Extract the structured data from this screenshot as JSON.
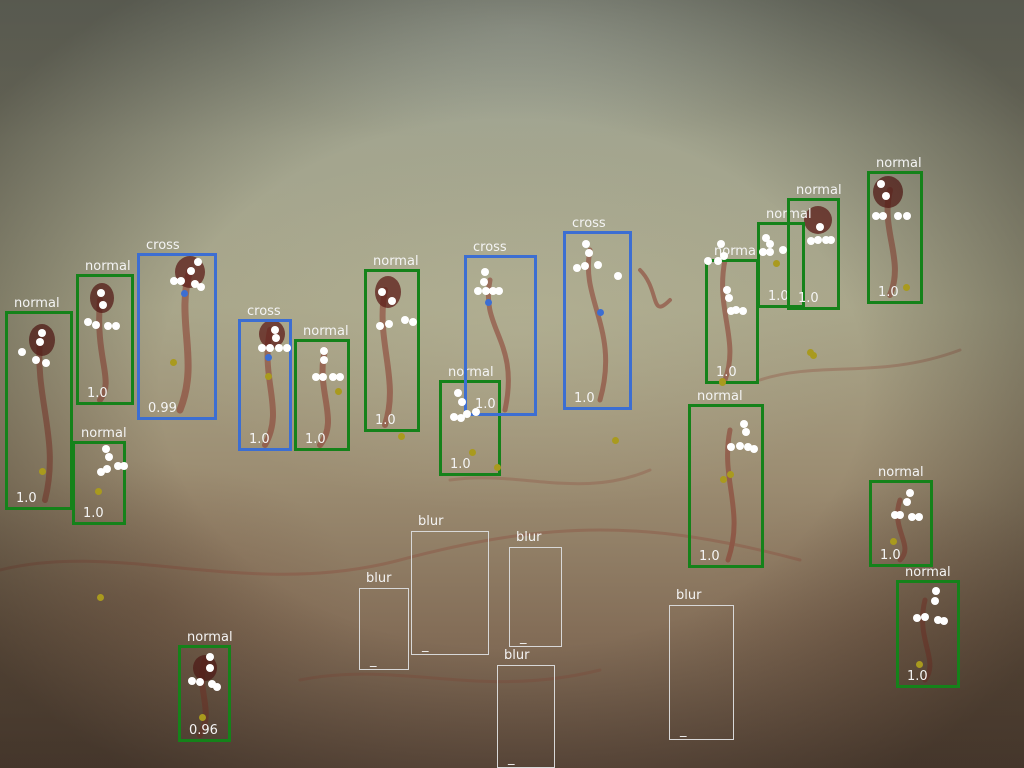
{
  "colors": {
    "normal": "#15821a",
    "cross": "#3c6ed2",
    "blur": "#d8d8d8",
    "keypoint": "#ffffff",
    "center_point": "#3c6ed2",
    "base_point": "#a99a1e"
  },
  "detections": [
    {
      "label": "normal",
      "score": "1.0",
      "cls": "normal"
    },
    {
      "label": "normal",
      "score": "1.0",
      "cls": "normal"
    },
    {
      "label": "cross",
      "score": "0.99",
      "cls": "cross"
    },
    {
      "label": "normal",
      "score": "1.0",
      "cls": "normal"
    },
    {
      "label": "cross",
      "score": "1.0",
      "cls": "cross"
    },
    {
      "label": "normal",
      "score": "1.0",
      "cls": "normal"
    },
    {
      "label": "normal",
      "score": "1.0",
      "cls": "normal"
    },
    {
      "label": "normal",
      "score": "1.0",
      "cls": "normal"
    },
    {
      "label": "cross",
      "score": "1.0",
      "cls": "cross"
    },
    {
      "label": "cross",
      "score": "1.0",
      "cls": "cross"
    },
    {
      "label": "normal",
      "score": "1.0",
      "cls": "normal"
    },
    {
      "label": "normal",
      "score": "1.0",
      "cls": "normal"
    },
    {
      "label": "normal",
      "score": "1.0",
      "cls": "normal"
    },
    {
      "label": "normal",
      "score": "1.0",
      "cls": "normal"
    },
    {
      "label": "normal",
      "score": "1.0",
      "cls": "normal"
    },
    {
      "label": "normal",
      "score": "1.0",
      "cls": "normal"
    },
    {
      "label": "normal",
      "score": "1.0",
      "cls": "normal"
    },
    {
      "label": "normal",
      "score": "0.96",
      "cls": "normal"
    },
    {
      "label": "blur",
      "score": "_",
      "cls": "blur"
    },
    {
      "label": "blur",
      "score": "_",
      "cls": "blur"
    },
    {
      "label": "blur",
      "score": "_",
      "cls": "blur"
    },
    {
      "label": "blur",
      "score": "_",
      "cls": "blur"
    },
    {
      "label": "blur",
      "score": "_",
      "cls": "blur"
    }
  ]
}
